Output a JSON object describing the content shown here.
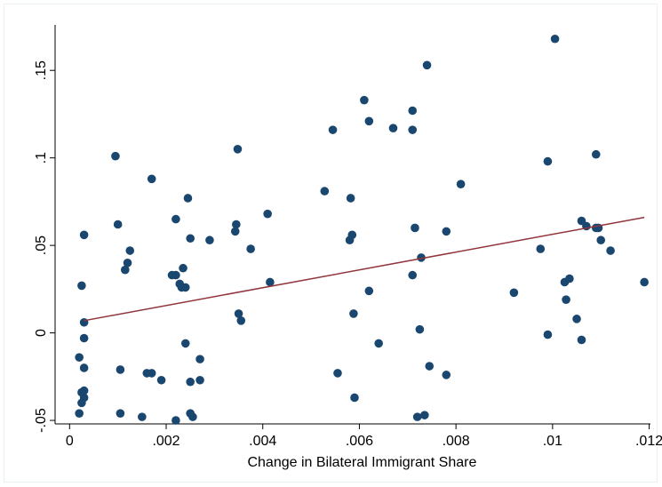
{
  "chart_data": {
    "type": "scatter",
    "xlabel": "Change in Bilateral Immigrant Share",
    "ylabel": "",
    "xlim": [
      -0.0003,
      0.0121
    ],
    "ylim": [
      -0.052,
      0.176
    ],
    "x_ticks": [
      0,
      0.002,
      0.004,
      0.006,
      0.008,
      0.01,
      0.012
    ],
    "x_tick_labels": [
      "0",
      ".002",
      ".004",
      ".006",
      ".008",
      ".01",
      ".012"
    ],
    "y_ticks": [
      -0.05,
      0,
      0.05,
      0.1,
      0.15
    ],
    "y_tick_labels": [
      "-.05",
      "0",
      ".05",
      ".1",
      ".15"
    ],
    "grid": false,
    "colors": {
      "points": "#1a476f",
      "fit_line": "#90353b"
    },
    "series": [
      {
        "type": "scatter",
        "points": [
          [
            0.0002,
            -0.046
          ],
          [
            0.0002,
            -0.014
          ],
          [
            0.00025,
            -0.04
          ],
          [
            0.00025,
            -0.034
          ],
          [
            0.0003,
            -0.037
          ],
          [
            0.0003,
            -0.033
          ],
          [
            0.0003,
            -0.02
          ],
          [
            0.0003,
            -0.003
          ],
          [
            0.0003,
            0.006
          ],
          [
            0.00025,
            0.027
          ],
          [
            0.0003,
            0.056
          ],
          [
            0.00095,
            0.101
          ],
          [
            0.001,
            0.062
          ],
          [
            0.00105,
            -0.021
          ],
          [
            0.00105,
            -0.046
          ],
          [
            0.00115,
            0.036
          ],
          [
            0.0012,
            0.04
          ],
          [
            0.00125,
            0.047
          ],
          [
            0.0015,
            -0.048
          ],
          [
            0.0016,
            -0.023
          ],
          [
            0.0017,
            0.088
          ],
          [
            0.0017,
            -0.023
          ],
          [
            0.0019,
            -0.027
          ],
          [
            0.00212,
            0.033
          ],
          [
            0.0022,
            0.033
          ],
          [
            0.0022,
            0.065
          ],
          [
            0.0022,
            -0.05
          ],
          [
            0.00228,
            0.028
          ],
          [
            0.00232,
            0.026
          ],
          [
            0.00235,
            0.037
          ],
          [
            0.0024,
            0.026
          ],
          [
            0.0024,
            -0.006
          ],
          [
            0.00245,
            0.077
          ],
          [
            0.0025,
            0.054
          ],
          [
            0.0025,
            -0.028
          ],
          [
            0.0025,
            -0.046
          ],
          [
            0.00255,
            -0.048
          ],
          [
            0.0027,
            -0.027
          ],
          [
            0.0027,
            -0.015
          ],
          [
            0.0029,
            0.053
          ],
          [
            0.00343,
            0.058
          ],
          [
            0.00345,
            0.062
          ],
          [
            0.00348,
            0.105
          ],
          [
            0.0035,
            0.011
          ],
          [
            0.00355,
            0.007
          ],
          [
            0.00375,
            0.048
          ],
          [
            0.0041,
            0.068
          ],
          [
            0.00415,
            0.029
          ],
          [
            0.00528,
            0.081
          ],
          [
            0.00545,
            0.116
          ],
          [
            0.00555,
            -0.023
          ],
          [
            0.0058,
            0.053
          ],
          [
            0.00582,
            0.077
          ],
          [
            0.00585,
            0.056
          ],
          [
            0.00588,
            0.011
          ],
          [
            0.0059,
            -0.037
          ],
          [
            0.0061,
            0.133
          ],
          [
            0.0062,
            0.121
          ],
          [
            0.0062,
            0.024
          ],
          [
            0.0064,
            -0.006
          ],
          [
            0.0067,
            0.117
          ],
          [
            0.0071,
            0.127
          ],
          [
            0.0071,
            0.116
          ],
          [
            0.0071,
            0.033
          ],
          [
            0.00715,
            0.06
          ],
          [
            0.0072,
            -0.048
          ],
          [
            0.00725,
            0.002
          ],
          [
            0.00728,
            0.043
          ],
          [
            0.00735,
            -0.047
          ],
          [
            0.0074,
            0.153
          ],
          [
            0.00745,
            -0.019
          ],
          [
            0.0078,
            0.058
          ],
          [
            0.0078,
            -0.024
          ],
          [
            0.0081,
            0.085
          ],
          [
            0.0092,
            0.023
          ],
          [
            0.00975,
            0.048
          ],
          [
            0.0099,
            0.098
          ],
          [
            0.0099,
            -0.001
          ],
          [
            0.01005,
            0.168
          ],
          [
            0.01025,
            0.029
          ],
          [
            0.01028,
            0.019
          ],
          [
            0.01035,
            0.031
          ],
          [
            0.0105,
            0.008
          ],
          [
            0.0106,
            0.064
          ],
          [
            0.0106,
            -0.004
          ],
          [
            0.0107,
            0.061
          ],
          [
            0.0109,
            0.102
          ],
          [
            0.0109,
            0.06
          ],
          [
            0.011,
            0.053
          ],
          [
            0.01095,
            0.06
          ],
          [
            0.0112,
            0.047
          ],
          [
            0.0119,
            0.029
          ]
        ]
      },
      {
        "type": "line",
        "points": [
          [
            0.0003,
            0.007
          ],
          [
            0.0119,
            0.066
          ]
        ]
      }
    ]
  }
}
